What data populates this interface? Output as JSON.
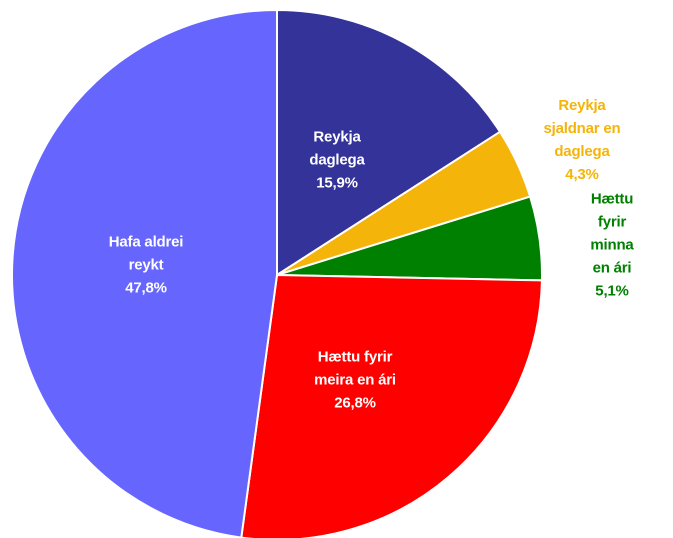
{
  "chart_data": {
    "type": "pie",
    "categories": [
      "Reykja\ndaglega",
      "Reykja\nsjaldnar en\ndaglega",
      "Hættu fyrir\nminna en ári",
      "Hættu fyrir\nmeira en ári",
      "Hafa aldrei\nreykt"
    ],
    "values": [
      15.9,
      4.3,
      5.1,
      26.8,
      47.8
    ],
    "value_labels": [
      "15,9%",
      "4,3%",
      "5,1%",
      "26,8%",
      "47,8%"
    ],
    "colors": [
      "#333399",
      "#f5b40a",
      "#008000",
      "#ff0000",
      "#6666ff"
    ]
  }
}
